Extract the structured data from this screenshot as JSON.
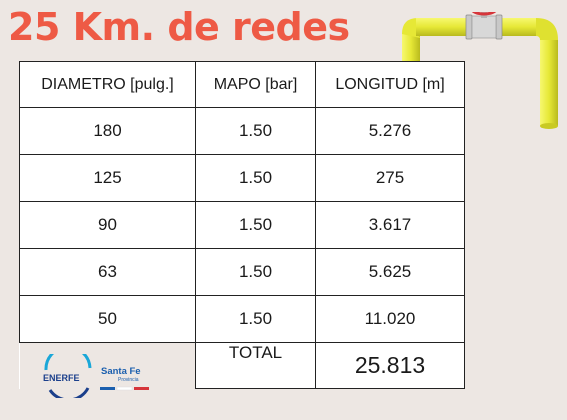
{
  "title": "25 Km. de redes",
  "table": {
    "headers": [
      "DIAMETRO [pulg.]",
      "MAPO [bar]",
      "LONGITUD [m]"
    ],
    "rows": [
      [
        "180",
        "1.50",
        "5.276"
      ],
      [
        "125",
        "1.50",
        "275"
      ],
      [
        "90",
        "1.50",
        "3.617"
      ],
      [
        "63",
        "1.50",
        "5.625"
      ],
      [
        "50",
        "1.50",
        "11.020"
      ]
    ],
    "total_label": "TOTAL",
    "total_value": "25.813"
  },
  "logos": {
    "enerfe": "ENERFE",
    "santa_fe": "Santa Fe",
    "santa_fe_sub": "Provincia"
  },
  "colors": {
    "title": "#ee5a45",
    "background": "#ede7e3",
    "pipe": "#e8ea3a",
    "valve": "#d6353a"
  },
  "icons": [
    "gas-pipe-valve-icon",
    "enerfe-logo-icon"
  ]
}
